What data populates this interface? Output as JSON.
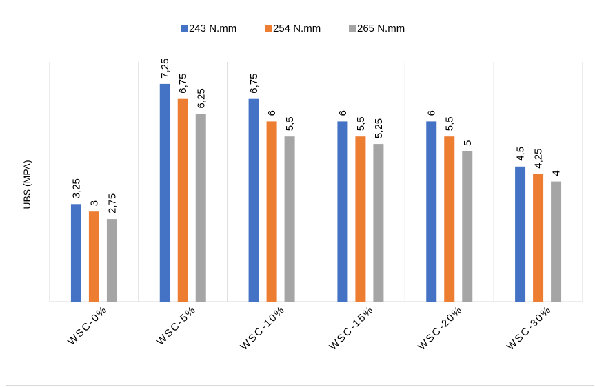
{
  "chart_data": {
    "type": "bar",
    "title": "",
    "xlabel": "",
    "ylabel": "UBS (MPA)",
    "categories": [
      "WSC-0%",
      "WSC-5%",
      "WSC-10%",
      "WSC-15%",
      "WSC-20%",
      "WSC-30%"
    ],
    "series": [
      {
        "name": "243 N.mm",
        "color": "#4472c4",
        "values": [
          3.25,
          7.25,
          6.75,
          6,
          6,
          4.5
        ]
      },
      {
        "name": "254 N.mm",
        "color": "#ed7d31",
        "values": [
          3,
          6.75,
          6,
          5.5,
          5.5,
          4.25
        ]
      },
      {
        "name": "265 N.mm",
        "color": "#a5a5a5",
        "values": [
          2.75,
          6.25,
          5.5,
          5.25,
          5,
          4
        ]
      }
    ],
    "data_labels": [
      [
        "3,25",
        "3",
        "2,75"
      ],
      [
        "7,25",
        "6,75",
        "6,25"
      ],
      [
        "6,75",
        "6",
        "5,5"
      ],
      [
        "6",
        "5,5",
        "5,25"
      ],
      [
        "6",
        "5,5",
        "5"
      ],
      [
        "4,5",
        "4,25",
        "4"
      ]
    ],
    "ylim": [
      0,
      8
    ],
    "grid": false,
    "category_separators": true,
    "legend_position": "top"
  }
}
